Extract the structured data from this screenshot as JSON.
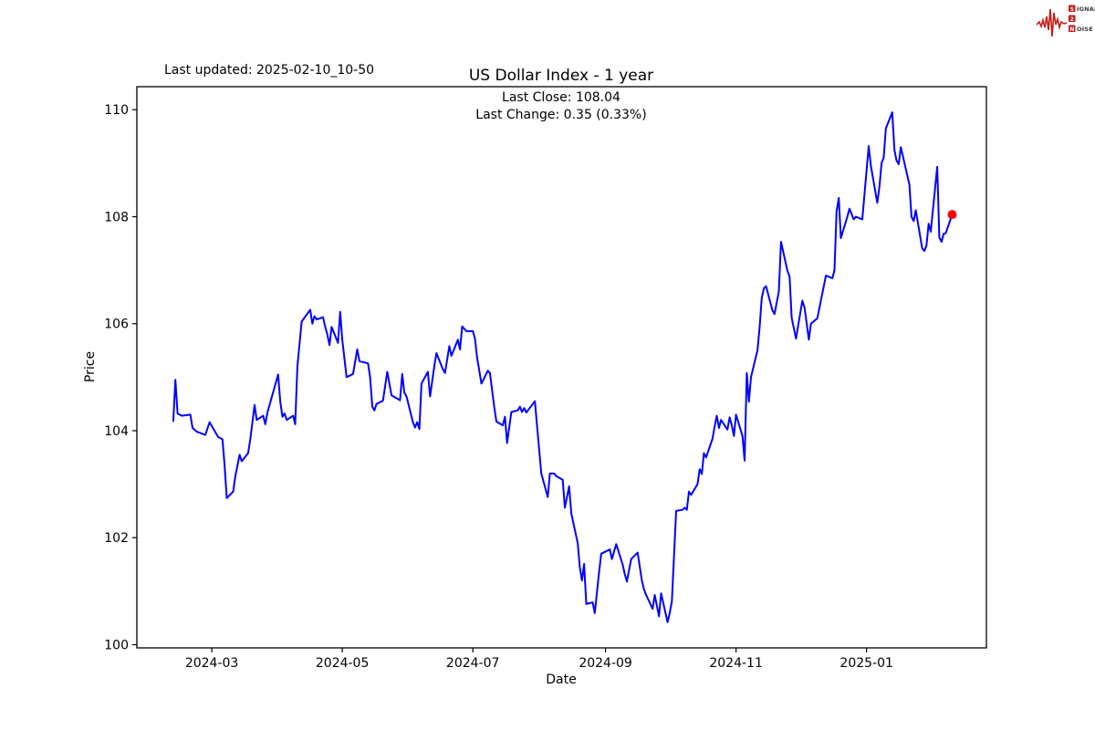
{
  "header": {
    "last_updated": "Last updated: 2025-02-10_10-50",
    "title": "US Dollar Index - 1 year",
    "subtitle_line1": "Last Close: 108.04",
    "subtitle_line2": "Last Change: 0.35 (0.33%)"
  },
  "logo": {
    "color": "#c41a1a",
    "rows": [
      {
        "boxed": "S",
        "rest": "IGNAL"
      },
      {
        "boxed": "2",
        "rest": ""
      },
      {
        "boxed": "N",
        "rest": "OISE"
      }
    ]
  },
  "chart_data": {
    "type": "line",
    "title": "US Dollar Index - 1 year",
    "xlabel": "Date",
    "ylabel": "Price",
    "ylim": [
      99.94,
      110.43
    ],
    "x_domain": [
      "2024-01-26",
      "2025-02-26"
    ],
    "grid": false,
    "legend": "none",
    "line_color": "#0000ff",
    "line_width": 2,
    "y_ticks": [
      100,
      102,
      104,
      106,
      108,
      110
    ],
    "x_ticks": [
      {
        "date": "2024-03-01",
        "label": "2024-03"
      },
      {
        "date": "2024-05-01",
        "label": "2024-05"
      },
      {
        "date": "2024-07-01",
        "label": "2024-07"
      },
      {
        "date": "2024-09-01",
        "label": "2024-09"
      },
      {
        "date": "2024-11-01",
        "label": "2024-11"
      },
      {
        "date": "2025-01-01",
        "label": "2025-01"
      }
    ],
    "marker": {
      "date": "2025-02-10",
      "value": 108.04,
      "color": "#ff0000",
      "radius": 5
    },
    "series": [
      {
        "name": "US Dollar Index",
        "points": [
          [
            "2024-02-12",
            104.18
          ],
          [
            "2024-02-13",
            104.95
          ],
          [
            "2024-02-14",
            104.32
          ],
          [
            "2024-02-15",
            104.3
          ],
          [
            "2024-02-16",
            104.28
          ],
          [
            "2024-02-20",
            104.3
          ],
          [
            "2024-02-21",
            104.05
          ],
          [
            "2024-02-23",
            103.98
          ],
          [
            "2024-02-27",
            103.92
          ],
          [
            "2024-02-29",
            104.16
          ],
          [
            "2024-03-04",
            103.88
          ],
          [
            "2024-03-06",
            103.84
          ],
          [
            "2024-03-07",
            103.36
          ],
          [
            "2024-03-08",
            102.74
          ],
          [
            "2024-03-11",
            102.86
          ],
          [
            "2024-03-12",
            103.15
          ],
          [
            "2024-03-14",
            103.55
          ],
          [
            "2024-03-15",
            103.43
          ],
          [
            "2024-03-18",
            103.58
          ],
          [
            "2024-03-19",
            103.84
          ],
          [
            "2024-03-21",
            104.48
          ],
          [
            "2024-03-22",
            104.2
          ],
          [
            "2024-03-25",
            104.28
          ],
          [
            "2024-03-26",
            104.12
          ],
          [
            "2024-03-27",
            104.34
          ],
          [
            "2024-04-01",
            105.05
          ],
          [
            "2024-04-02",
            104.55
          ],
          [
            "2024-04-03",
            104.26
          ],
          [
            "2024-04-04",
            104.32
          ],
          [
            "2024-04-05",
            104.2
          ],
          [
            "2024-04-08",
            104.28
          ],
          [
            "2024-04-09",
            104.12
          ],
          [
            "2024-04-10",
            105.2
          ],
          [
            "2024-04-12",
            106.04
          ],
          [
            "2024-04-16",
            106.26
          ],
          [
            "2024-04-17",
            106.0
          ],
          [
            "2024-04-18",
            106.14
          ],
          [
            "2024-04-19",
            106.08
          ],
          [
            "2024-04-22",
            106.12
          ],
          [
            "2024-04-23",
            105.94
          ],
          [
            "2024-04-24",
            105.8
          ],
          [
            "2024-04-25",
            105.6
          ],
          [
            "2024-04-26",
            105.94
          ],
          [
            "2024-04-29",
            105.64
          ],
          [
            "2024-04-30",
            106.22
          ],
          [
            "2024-05-01",
            105.7
          ],
          [
            "2024-05-03",
            105.0
          ],
          [
            "2024-05-06",
            105.06
          ],
          [
            "2024-05-08",
            105.52
          ],
          [
            "2024-05-09",
            105.3
          ],
          [
            "2024-05-13",
            105.26
          ],
          [
            "2024-05-14",
            105.0
          ],
          [
            "2024-05-15",
            104.45
          ],
          [
            "2024-05-16",
            104.38
          ],
          [
            "2024-05-17",
            104.5
          ],
          [
            "2024-05-20",
            104.56
          ],
          [
            "2024-05-22",
            105.1
          ],
          [
            "2024-05-24",
            104.66
          ],
          [
            "2024-05-28",
            104.57
          ],
          [
            "2024-05-29",
            105.06
          ],
          [
            "2024-05-30",
            104.71
          ],
          [
            "2024-05-31",
            104.64
          ],
          [
            "2024-06-03",
            104.16
          ],
          [
            "2024-06-04",
            104.06
          ],
          [
            "2024-06-05",
            104.16
          ],
          [
            "2024-06-06",
            104.03
          ],
          [
            "2024-06-07",
            104.88
          ],
          [
            "2024-06-10",
            105.1
          ],
          [
            "2024-06-11",
            104.64
          ],
          [
            "2024-06-13",
            105.21
          ],
          [
            "2024-06-14",
            105.45
          ],
          [
            "2024-06-17",
            105.15
          ],
          [
            "2024-06-18",
            105.08
          ],
          [
            "2024-06-20",
            105.58
          ],
          [
            "2024-06-21",
            105.4
          ],
          [
            "2024-06-24",
            105.7
          ],
          [
            "2024-06-25",
            105.52
          ],
          [
            "2024-06-26",
            105.95
          ],
          [
            "2024-06-28",
            105.86
          ],
          [
            "2024-07-01",
            105.86
          ],
          [
            "2024-07-02",
            105.72
          ],
          [
            "2024-07-03",
            105.36
          ],
          [
            "2024-07-05",
            104.88
          ],
          [
            "2024-07-08",
            105.12
          ],
          [
            "2024-07-09",
            105.08
          ],
          [
            "2024-07-11",
            104.45
          ],
          [
            "2024-07-12",
            104.17
          ],
          [
            "2024-07-15",
            104.1
          ],
          [
            "2024-07-16",
            104.26
          ],
          [
            "2024-07-17",
            103.77
          ],
          [
            "2024-07-19",
            104.35
          ],
          [
            "2024-07-22",
            104.38
          ],
          [
            "2024-07-23",
            104.45
          ],
          [
            "2024-07-24",
            104.35
          ],
          [
            "2024-07-25",
            104.42
          ],
          [
            "2024-07-26",
            104.34
          ],
          [
            "2024-07-30",
            104.55
          ],
          [
            "2024-07-31",
            104.1
          ],
          [
            "2024-08-02",
            103.2
          ],
          [
            "2024-08-05",
            102.76
          ],
          [
            "2024-08-06",
            103.2
          ],
          [
            "2024-08-08",
            103.2
          ],
          [
            "2024-08-09",
            103.15
          ],
          [
            "2024-08-12",
            103.08
          ],
          [
            "2024-08-13",
            102.56
          ],
          [
            "2024-08-15",
            102.96
          ],
          [
            "2024-08-16",
            102.45
          ],
          [
            "2024-08-19",
            101.9
          ],
          [
            "2024-08-20",
            101.45
          ],
          [
            "2024-08-21",
            101.2
          ],
          [
            "2024-08-22",
            101.51
          ],
          [
            "2024-08-23",
            100.76
          ],
          [
            "2024-08-26",
            100.79
          ],
          [
            "2024-08-27",
            100.59
          ],
          [
            "2024-08-29",
            101.35
          ],
          [
            "2024-08-30",
            101.7
          ],
          [
            "2024-09-03",
            101.78
          ],
          [
            "2024-09-04",
            101.6
          ],
          [
            "2024-09-06",
            101.88
          ],
          [
            "2024-09-09",
            101.5
          ],
          [
            "2024-09-10",
            101.32
          ],
          [
            "2024-09-11",
            101.18
          ],
          [
            "2024-09-13",
            101.6
          ],
          [
            "2024-09-16",
            101.72
          ],
          [
            "2024-09-18",
            101.2
          ],
          [
            "2024-09-19",
            101.03
          ],
          [
            "2024-09-20",
            100.93
          ],
          [
            "2024-09-23",
            100.67
          ],
          [
            "2024-09-24",
            100.93
          ],
          [
            "2024-09-26",
            100.53
          ],
          [
            "2024-09-27",
            100.96
          ],
          [
            "2024-09-30",
            100.42
          ],
          [
            "2024-10-01",
            100.59
          ],
          [
            "2024-10-02",
            100.81
          ],
          [
            "2024-10-04",
            102.5
          ],
          [
            "2024-10-07",
            102.52
          ],
          [
            "2024-10-08",
            102.56
          ],
          [
            "2024-10-09",
            102.52
          ],
          [
            "2024-10-10",
            102.86
          ],
          [
            "2024-10-11",
            102.8
          ],
          [
            "2024-10-14",
            103.0
          ],
          [
            "2024-10-15",
            103.28
          ],
          [
            "2024-10-16",
            103.19
          ],
          [
            "2024-10-17",
            103.58
          ],
          [
            "2024-10-18",
            103.5
          ],
          [
            "2024-10-21",
            103.85
          ],
          [
            "2024-10-22",
            104.08
          ],
          [
            "2024-10-23",
            104.28
          ],
          [
            "2024-10-24",
            104.05
          ],
          [
            "2024-10-25",
            104.2
          ],
          [
            "2024-10-28",
            104.02
          ],
          [
            "2024-10-29",
            104.25
          ],
          [
            "2024-10-30",
            104.1
          ],
          [
            "2024-10-31",
            103.9
          ],
          [
            "2024-11-01",
            104.3
          ],
          [
            "2024-11-04",
            103.9
          ],
          [
            "2024-11-05",
            103.44
          ],
          [
            "2024-11-06",
            105.08
          ],
          [
            "2024-11-07",
            104.54
          ],
          [
            "2024-11-08",
            105.0
          ],
          [
            "2024-11-11",
            105.5
          ],
          [
            "2024-11-12",
            105.92
          ],
          [
            "2024-11-13",
            106.48
          ],
          [
            "2024-11-14",
            106.66
          ],
          [
            "2024-11-15",
            106.7
          ],
          [
            "2024-11-18",
            106.25
          ],
          [
            "2024-11-19",
            106.18
          ],
          [
            "2024-11-21",
            106.6
          ],
          [
            "2024-11-22",
            107.53
          ],
          [
            "2024-11-25",
            106.99
          ],
          [
            "2024-11-26",
            106.88
          ],
          [
            "2024-11-27",
            106.11
          ],
          [
            "2024-11-29",
            105.72
          ],
          [
            "2024-12-02",
            106.43
          ],
          [
            "2024-12-03",
            106.3
          ],
          [
            "2024-12-05",
            105.7
          ],
          [
            "2024-12-06",
            106.0
          ],
          [
            "2024-12-09",
            106.1
          ],
          [
            "2024-12-11",
            106.5
          ],
          [
            "2024-12-12",
            106.7
          ],
          [
            "2024-12-13",
            106.9
          ],
          [
            "2024-12-16",
            106.85
          ],
          [
            "2024-12-17",
            107.0
          ],
          [
            "2024-12-18",
            108.1
          ],
          [
            "2024-12-19",
            108.35
          ],
          [
            "2024-12-20",
            107.6
          ],
          [
            "2024-12-23",
            108.0
          ],
          [
            "2024-12-24",
            108.15
          ],
          [
            "2024-12-26",
            107.95
          ],
          [
            "2024-12-27",
            108.0
          ],
          [
            "2024-12-30",
            107.95
          ],
          [
            "2024-12-31",
            108.4
          ],
          [
            "2025-01-02",
            109.32
          ],
          [
            "2025-01-03",
            108.95
          ],
          [
            "2025-01-06",
            108.26
          ],
          [
            "2025-01-07",
            108.55
          ],
          [
            "2025-01-08",
            109.0
          ],
          [
            "2025-01-09",
            109.1
          ],
          [
            "2025-01-10",
            109.65
          ],
          [
            "2025-01-13",
            109.95
          ],
          [
            "2025-01-14",
            109.25
          ],
          [
            "2025-01-15",
            109.05
          ],
          [
            "2025-01-16",
            108.98
          ],
          [
            "2025-01-17",
            109.3
          ],
          [
            "2025-01-21",
            108.6
          ],
          [
            "2025-01-22",
            108.0
          ],
          [
            "2025-01-23",
            107.92
          ],
          [
            "2025-01-24",
            108.12
          ],
          [
            "2025-01-27",
            107.41
          ],
          [
            "2025-01-28",
            107.36
          ],
          [
            "2025-01-29",
            107.46
          ],
          [
            "2025-01-30",
            107.87
          ],
          [
            "2025-01-31",
            107.72
          ],
          [
            "2025-02-03",
            108.93
          ],
          [
            "2025-02-04",
            107.61
          ],
          [
            "2025-02-05",
            107.53
          ],
          [
            "2025-02-06",
            107.68
          ],
          [
            "2025-02-07",
            107.69
          ],
          [
            "2025-02-10",
            108.04
          ]
        ]
      }
    ]
  }
}
